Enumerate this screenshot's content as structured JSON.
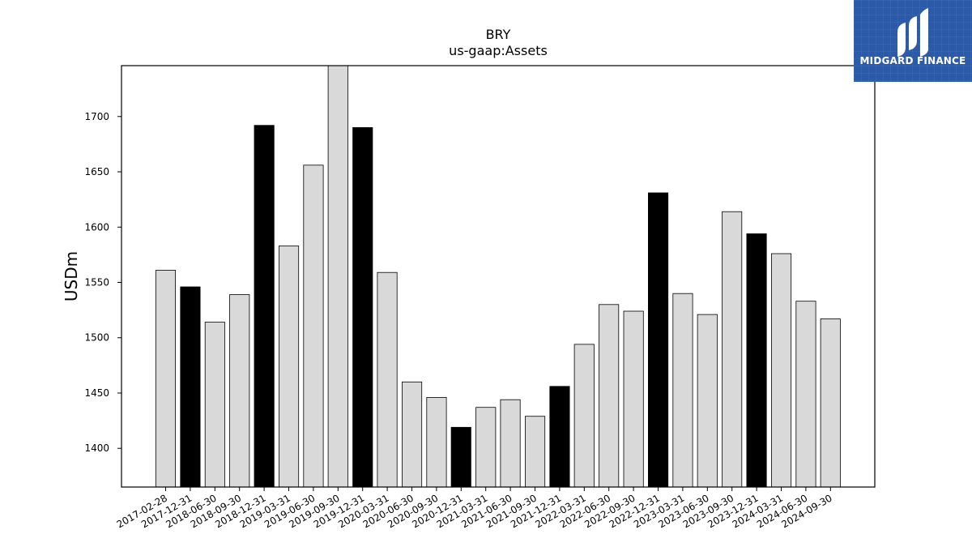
{
  "chart_data": {
    "type": "bar",
    "title": "BRY",
    "subtitle": "us-gaap:Assets",
    "xlabel": "",
    "ylabel": "USDm",
    "ylim": [
      1365,
      1746
    ],
    "yticks": [
      1400,
      1450,
      1500,
      1550,
      1600,
      1650,
      1700
    ],
    "grid": false,
    "categories": [
      "2017-02-28",
      "2017-12-31",
      "2018-06-30",
      "2018-09-30",
      "2018-12-31",
      "2019-03-31",
      "2019-06-30",
      "2019-09-30",
      "2019-12-31",
      "2020-03-31",
      "2020-06-30",
      "2020-09-30",
      "2020-12-31",
      "2021-03-31",
      "2021-06-30",
      "2021-09-30",
      "2021-12-31",
      "2022-03-31",
      "2022-06-30",
      "2022-09-30",
      "2022-12-31",
      "2023-03-31",
      "2023-06-30",
      "2023-09-30",
      "2023-12-31",
      "2024-03-31",
      "2024-06-30",
      "2024-09-30"
    ],
    "values": [
      1561,
      1546,
      1514,
      1539,
      1692,
      1583,
      1656,
      1746,
      1690,
      1559,
      1460,
      1446,
      1419,
      1437,
      1444,
      1429,
      1456,
      1494,
      1530,
      1524,
      1631,
      1540,
      1521,
      1614,
      1594,
      1576,
      1533,
      1517
    ],
    "highlight": [
      false,
      true,
      false,
      false,
      true,
      false,
      false,
      false,
      true,
      false,
      false,
      false,
      true,
      false,
      false,
      false,
      true,
      false,
      false,
      false,
      true,
      false,
      false,
      false,
      true,
      false,
      false,
      false
    ],
    "colors": {
      "bar": "#d9d9d9",
      "highlight": "#000000",
      "edge": "#000000"
    }
  },
  "logo": {
    "text": "MIDGARD FINANCE",
    "background": "#2b5aa9"
  }
}
